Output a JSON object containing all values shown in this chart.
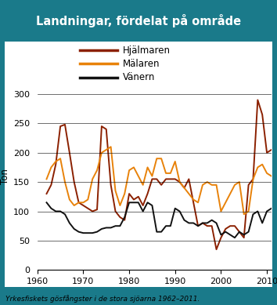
{
  "title": "Landningar, fördelat på område",
  "title_bg": "#1a7a8a",
  "border_color": "#1a7a8a",
  "ylabel": "Ton",
  "caption": "Yrkesfiskets gösfångster i de stora sjöarna 1962–2011.",
  "xlim": [
    1960,
    2011
  ],
  "ylim": [
    0,
    320
  ],
  "yticks": [
    0,
    50,
    100,
    150,
    200,
    250,
    300
  ],
  "xticks": [
    1960,
    1970,
    1980,
    1990,
    2000,
    2010
  ],
  "hjalmaren_color": "#8B2000",
  "malaren_color": "#E8820A",
  "vanern_color": "#111111",
  "legend_labels": [
    "Hjälmaren",
    "Mälaren",
    "Vänern"
  ],
  "hjalmaren": {
    "years": [
      1962,
      1963,
      1964,
      1965,
      1966,
      1967,
      1968,
      1969,
      1970,
      1971,
      1972,
      1973,
      1974,
      1975,
      1976,
      1977,
      1978,
      1979,
      1980,
      1981,
      1982,
      1983,
      1984,
      1985,
      1986,
      1987,
      1988,
      1989,
      1990,
      1991,
      1992,
      1993,
      1994,
      1995,
      1996,
      1997,
      1998,
      1999,
      2000,
      2001,
      2002,
      2003,
      2004,
      2005,
      2006,
      2007,
      2008,
      2009,
      2010,
      2011
    ],
    "values": [
      130,
      145,
      180,
      245,
      248,
      200,
      150,
      115,
      110,
      105,
      100,
      103,
      245,
      240,
      145,
      100,
      90,
      85,
      130,
      120,
      125,
      110,
      130,
      155,
      155,
      145,
      155,
      155,
      155,
      150,
      140,
      155,
      115,
      75,
      80,
      75,
      75,
      35,
      55,
      70,
      75,
      75,
      65,
      55,
      145,
      155,
      290,
      265,
      200,
      205
    ]
  },
  "malaren": {
    "years": [
      1962,
      1963,
      1964,
      1965,
      1966,
      1967,
      1968,
      1969,
      1970,
      1971,
      1972,
      1973,
      1974,
      1975,
      1976,
      1977,
      1978,
      1979,
      1980,
      1981,
      1982,
      1983,
      1984,
      1985,
      1986,
      1987,
      1988,
      1989,
      1990,
      1991,
      1992,
      1993,
      1994,
      1995,
      1996,
      1997,
      1998,
      1999,
      2000,
      2001,
      2002,
      2003,
      2004,
      2005,
      2006,
      2007,
      2008,
      2009,
      2010,
      2011
    ],
    "values": [
      155,
      175,
      185,
      190,
      150,
      120,
      110,
      115,
      115,
      120,
      155,
      170,
      200,
      205,
      210,
      135,
      110,
      130,
      170,
      175,
      160,
      145,
      175,
      160,
      190,
      190,
      165,
      165,
      185,
      150,
      140,
      130,
      120,
      115,
      145,
      150,
      145,
      145,
      100,
      115,
      130,
      145,
      150,
      95,
      100,
      155,
      175,
      180,
      165,
      160
    ]
  },
  "vanern": {
    "years": [
      1962,
      1963,
      1964,
      1965,
      1966,
      1967,
      1968,
      1969,
      1970,
      1971,
      1972,
      1973,
      1974,
      1975,
      1976,
      1977,
      1978,
      1979,
      1980,
      1981,
      1982,
      1983,
      1984,
      1985,
      1986,
      1987,
      1988,
      1989,
      1990,
      1991,
      1992,
      1993,
      1994,
      1995,
      1996,
      1997,
      1998,
      1999,
      2000,
      2001,
      2002,
      2003,
      2004,
      2005,
      2006,
      2007,
      2008,
      2009,
      2010,
      2011
    ],
    "values": [
      115,
      105,
      100,
      100,
      95,
      80,
      70,
      65,
      63,
      63,
      63,
      65,
      70,
      72,
      72,
      75,
      75,
      90,
      115,
      115,
      115,
      100,
      115,
      110,
      65,
      65,
      75,
      75,
      105,
      100,
      85,
      80,
      80,
      75,
      80,
      80,
      85,
      80,
      60,
      65,
      60,
      55,
      65,
      60,
      65,
      95,
      100,
      80,
      100,
      105
    ]
  }
}
